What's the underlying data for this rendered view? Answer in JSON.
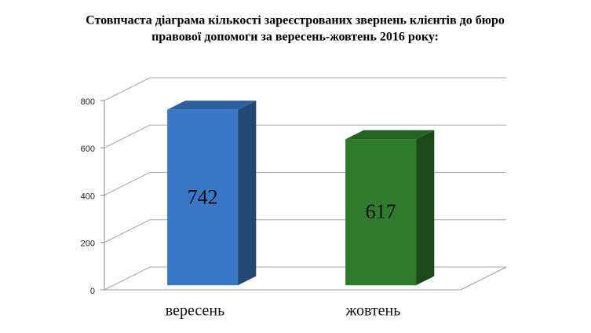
{
  "chart_data": {
    "type": "bar3d",
    "title": [
      "Стовпчаста діаграма кількості зареєстрованих звернень клієнтів до бюро",
      "правової допомоги за вересень-жовтень 2016 року:"
    ],
    "categories": [
      "вересень",
      "жовтень"
    ],
    "values": [
      742,
      617
    ],
    "colors": [
      "#3a77c6",
      "#2f7a2c"
    ],
    "ylim": [
      0,
      800
    ],
    "yticks": [
      0,
      200,
      400,
      600,
      800
    ],
    "grid": true
  }
}
